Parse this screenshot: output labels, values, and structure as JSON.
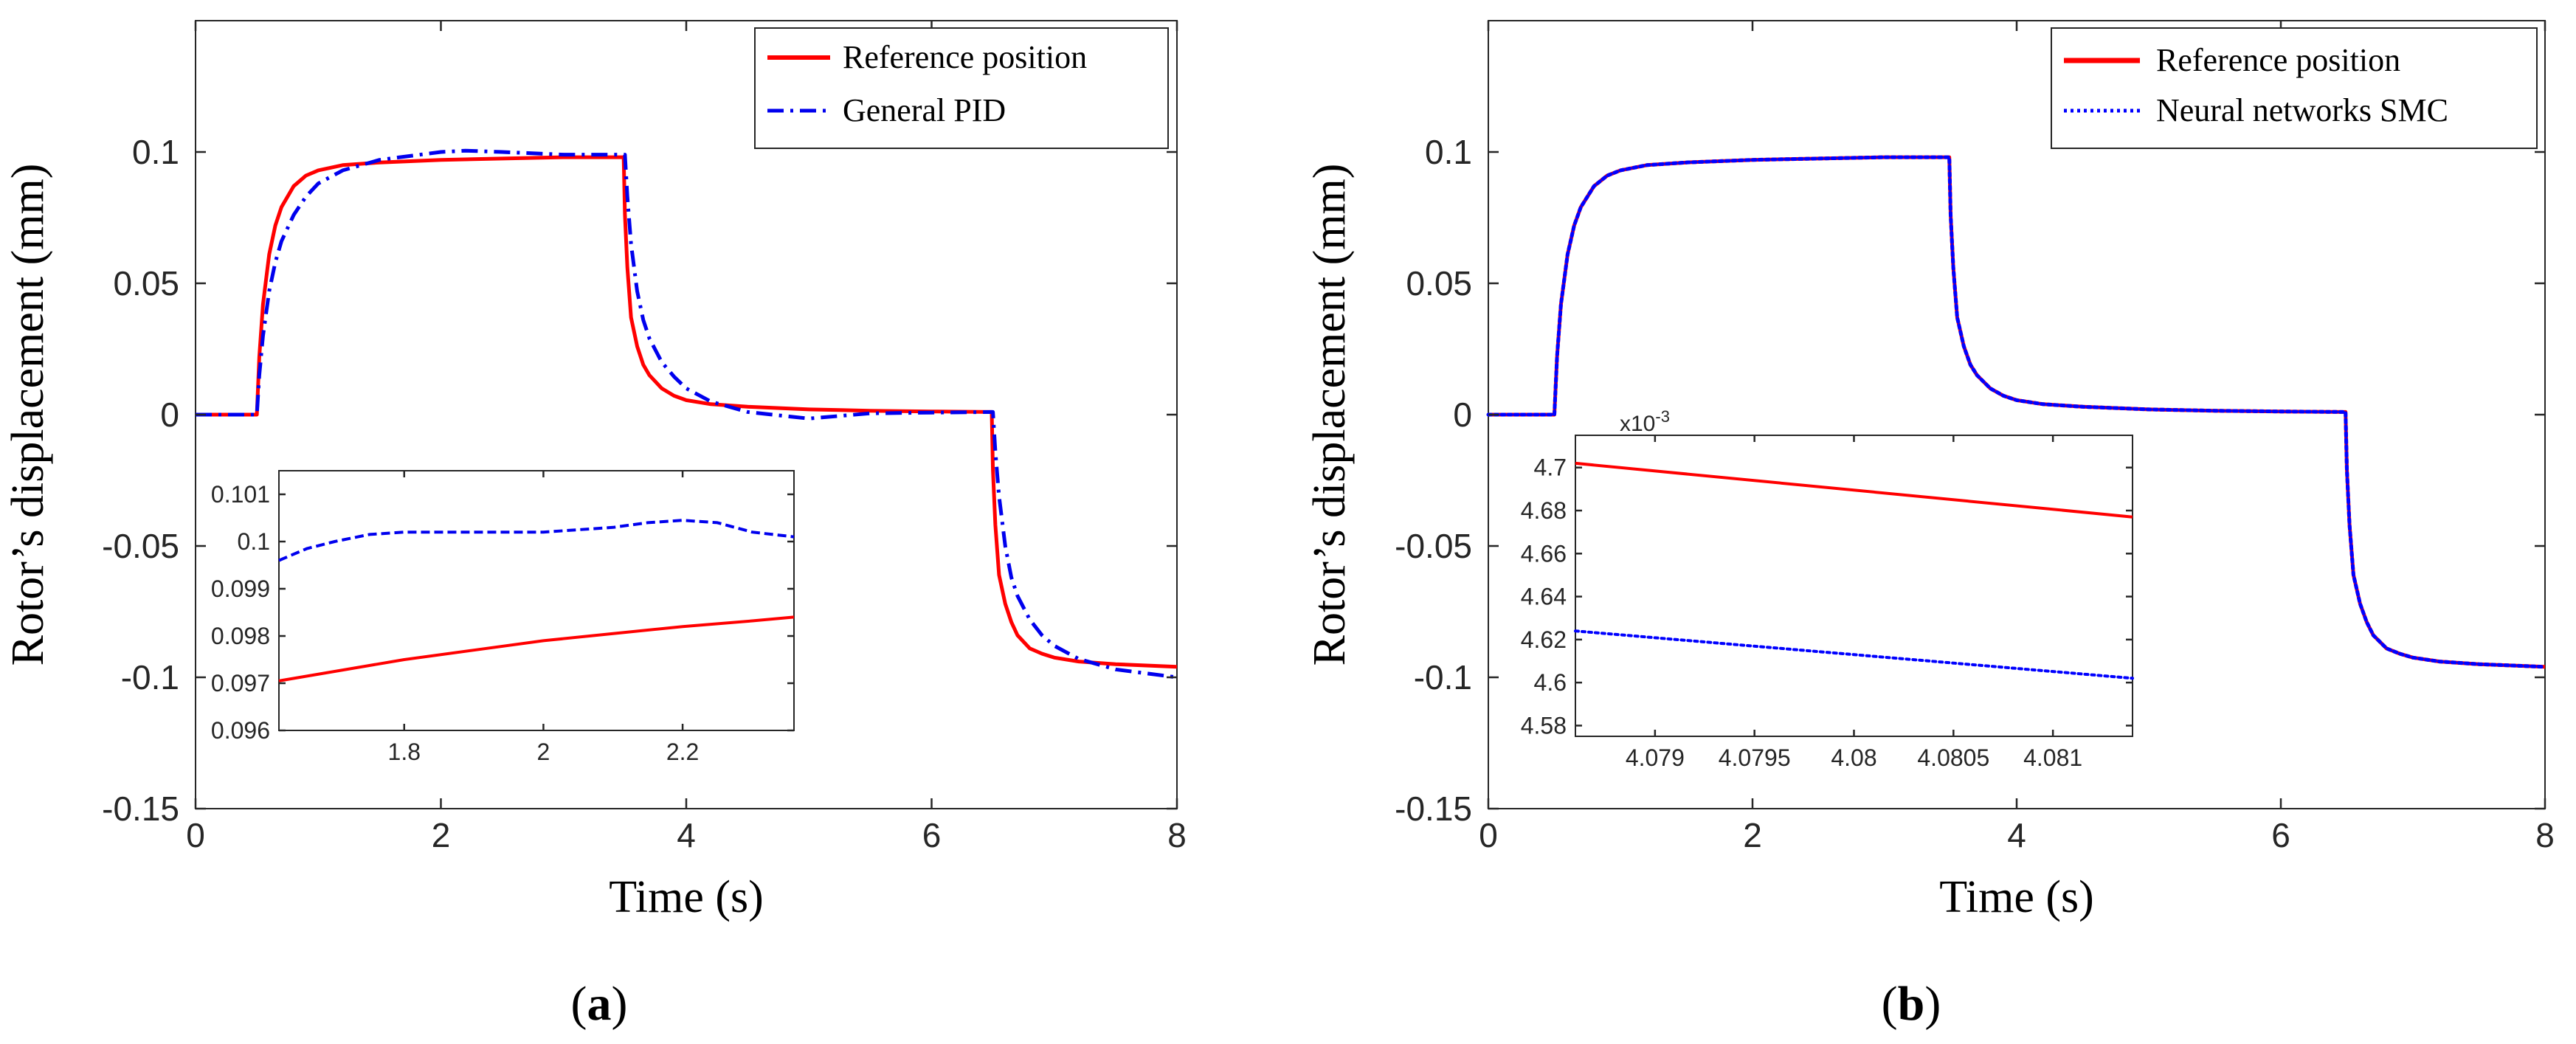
{
  "colors": {
    "reference": "#ff0000",
    "pid": "#0000ee",
    "smc": "#0000ff",
    "axis": "#262626"
  },
  "chart_data": [
    {
      "id": "a",
      "type": "line",
      "panel_label": {
        "open": "(",
        "letter": "a",
        "close": ")"
      },
      "xlabel": "Time (s)",
      "ylabel": "Rotor’s displacement (mm)",
      "xlim": [
        0,
        8
      ],
      "ylim": [
        -0.15,
        0.15
      ],
      "xticks": [
        0,
        2,
        4,
        6,
        8
      ],
      "xtick_labels": [
        "0",
        "2",
        "4",
        "6",
        "8"
      ],
      "yticks": [
        -0.15,
        -0.1,
        -0.05,
        0,
        0.05,
        0.1
      ],
      "ytick_labels": [
        "-0.15",
        "-0.1",
        "-0.05",
        "0",
        "0.05",
        "0.1"
      ],
      "legend": {
        "placement": "top-right",
        "entries": [
          "Reference position",
          "General PID"
        ]
      },
      "series": [
        {
          "name": "Reference position",
          "style": "solid",
          "x": [
            0,
            0.5,
            0.52,
            0.55,
            0.6,
            0.65,
            0.7,
            0.8,
            0.9,
            1.0,
            1.2,
            1.5,
            2.0,
            2.5,
            3.0,
            3.49,
            3.5,
            3.52,
            3.55,
            3.6,
            3.65,
            3.7,
            3.8,
            3.9,
            4.0,
            4.2,
            4.5,
            5.0,
            5.5,
            6.0,
            6.49,
            6.5,
            6.52,
            6.55,
            6.6,
            6.65,
            6.7,
            6.8,
            6.9,
            7.0,
            7.2,
            7.5,
            8.0
          ],
          "y": [
            0,
            0,
            0.022,
            0.042,
            0.061,
            0.072,
            0.079,
            0.087,
            0.091,
            0.093,
            0.095,
            0.096,
            0.097,
            0.0975,
            0.098,
            0.098,
            0.076,
            0.056,
            0.037,
            0.026,
            0.019,
            0.015,
            0.01,
            0.0072,
            0.0055,
            0.004,
            0.003,
            0.002,
            0.0015,
            0.0012,
            0.001,
            -0.021,
            -0.042,
            -0.061,
            -0.072,
            -0.079,
            -0.084,
            -0.089,
            -0.091,
            -0.0925,
            -0.094,
            -0.095,
            -0.096
          ]
        },
        {
          "name": "General PID",
          "style": "dashdot",
          "x": [
            0,
            0.5,
            0.52,
            0.55,
            0.6,
            0.65,
            0.7,
            0.8,
            0.9,
            1.0,
            1.2,
            1.5,
            2.0,
            2.2,
            2.5,
            3.0,
            3.5,
            3.52,
            3.55,
            3.6,
            3.65,
            3.7,
            3.8,
            3.9,
            4.0,
            4.2,
            4.5,
            5.0,
            5.5,
            6.0,
            6.5,
            6.52,
            6.55,
            6.6,
            6.65,
            6.7,
            6.8,
            6.9,
            7.0,
            7.2,
            7.5,
            8.0
          ],
          "y": [
            0,
            0,
            0.015,
            0.03,
            0.047,
            0.058,
            0.066,
            0.076,
            0.083,
            0.088,
            0.093,
            0.097,
            0.1,
            0.1005,
            0.1,
            0.099,
            0.099,
            0.083,
            0.065,
            0.047,
            0.036,
            0.029,
            0.02,
            0.0145,
            0.01,
            0.005,
            0.001,
            -0.0015,
            0.0005,
            0.0008,
            0.001,
            -0.014,
            -0.031,
            -0.05,
            -0.062,
            -0.069,
            -0.078,
            -0.084,
            -0.088,
            -0.093,
            -0.097,
            -0.1
          ]
        }
      ],
      "inset": {
        "xlim": [
          1.62,
          2.36
        ],
        "ylim": [
          0.096,
          0.1015
        ],
        "xticks": [
          1.8,
          2,
          2.2
        ],
        "xtick_labels": [
          "1.8",
          "2",
          "2.2"
        ],
        "yticks": [
          0.096,
          0.097,
          0.098,
          0.099,
          0.1,
          0.101
        ],
        "ytick_labels": [
          "0.096",
          "0.097",
          "0.098",
          "0.099",
          "0.1",
          "0.101"
        ],
        "series": [
          {
            "name": "Reference position",
            "style": "solid",
            "x": [
              1.62,
              1.7,
              1.8,
              1.9,
              2.0,
              2.1,
              2.2,
              2.3,
              2.36
            ],
            "y": [
              0.09705,
              0.09725,
              0.0975,
              0.0977,
              0.0979,
              0.09805,
              0.0982,
              0.09832,
              0.0984
            ]
          },
          {
            "name": "General PID",
            "style": "dashed",
            "x": [
              1.62,
              1.66,
              1.7,
              1.75,
              1.8,
              1.9,
              2.0,
              2.05,
              2.1,
              2.15,
              2.2,
              2.25,
              2.3,
              2.33,
              2.36
            ],
            "y": [
              0.0996,
              0.09985,
              0.1,
              0.10015,
              0.1002,
              0.1002,
              0.1002,
              0.10025,
              0.1003,
              0.1004,
              0.10045,
              0.1004,
              0.1002,
              0.10015,
              0.1001
            ]
          }
        ]
      }
    },
    {
      "id": "b",
      "type": "line",
      "panel_label": {
        "open": "(",
        "letter": "b",
        "close": ")"
      },
      "xlabel": "Time (s)",
      "ylabel": "Rotor’s displacement (mm)",
      "xlim": [
        0,
        8
      ],
      "ylim": [
        -0.15,
        0.15
      ],
      "xticks": [
        0,
        2,
        4,
        6,
        8
      ],
      "xtick_labels": [
        "0",
        "2",
        "4",
        "6",
        "8"
      ],
      "yticks": [
        -0.15,
        -0.1,
        -0.05,
        0,
        0.05,
        0.1
      ],
      "ytick_labels": [
        "-0.15",
        "-0.1",
        "-0.05",
        "0",
        "0.05",
        "0.1"
      ],
      "legend": {
        "placement": "top-right",
        "entries": [
          "Reference position",
          "Neural networks SMC"
        ]
      },
      "series": [
        {
          "name": "Reference position",
          "style": "solid",
          "x": [
            0,
            0.5,
            0.52,
            0.55,
            0.6,
            0.65,
            0.7,
            0.8,
            0.9,
            1.0,
            1.2,
            1.5,
            2.0,
            2.5,
            3.0,
            3.49,
            3.5,
            3.52,
            3.55,
            3.6,
            3.65,
            3.7,
            3.8,
            3.9,
            4.0,
            4.2,
            4.5,
            5.0,
            5.5,
            6.0,
            6.49,
            6.5,
            6.52,
            6.55,
            6.6,
            6.65,
            6.7,
            6.8,
            6.9,
            7.0,
            7.2,
            7.5,
            8.0
          ],
          "y": [
            0,
            0,
            0.022,
            0.042,
            0.061,
            0.072,
            0.079,
            0.087,
            0.091,
            0.093,
            0.095,
            0.096,
            0.097,
            0.0975,
            0.098,
            0.098,
            0.076,
            0.056,
            0.037,
            0.026,
            0.019,
            0.015,
            0.01,
            0.0072,
            0.0055,
            0.004,
            0.003,
            0.002,
            0.0015,
            0.0012,
            0.001,
            -0.021,
            -0.042,
            -0.061,
            -0.072,
            -0.079,
            -0.084,
            -0.089,
            -0.091,
            -0.0925,
            -0.094,
            -0.095,
            -0.096
          ]
        },
        {
          "name": "Neural networks SMC",
          "style": "dotted",
          "x": [
            0,
            0.5,
            0.52,
            0.55,
            0.6,
            0.65,
            0.7,
            0.8,
            0.9,
            1.0,
            1.2,
            1.5,
            2.0,
            2.5,
            3.0,
            3.49,
            3.5,
            3.52,
            3.55,
            3.6,
            3.65,
            3.7,
            3.8,
            3.9,
            4.0,
            4.2,
            4.5,
            5.0,
            5.5,
            6.0,
            6.49,
            6.5,
            6.52,
            6.55,
            6.6,
            6.65,
            6.7,
            6.8,
            6.9,
            7.0,
            7.2,
            7.5,
            8.0
          ],
          "y": [
            0,
            0,
            0.022,
            0.042,
            0.061,
            0.072,
            0.079,
            0.087,
            0.091,
            0.093,
            0.095,
            0.096,
            0.097,
            0.0975,
            0.098,
            0.098,
            0.076,
            0.056,
            0.037,
            0.026,
            0.019,
            0.015,
            0.01,
            0.0072,
            0.0055,
            0.004,
            0.003,
            0.002,
            0.0015,
            0.0012,
            0.001,
            -0.021,
            -0.042,
            -0.061,
            -0.072,
            -0.079,
            -0.084,
            -0.089,
            -0.091,
            -0.0925,
            -0.094,
            -0.095,
            -0.096
          ]
        }
      ],
      "inset": {
        "exponent_label": "x10",
        "exponent_power": "-3",
        "xlim": [
          4.0786,
          4.0814
        ],
        "ylim": [
          4.575,
          4.715
        ],
        "xticks": [
          4.079,
          4.0795,
          4.08,
          4.0805,
          4.081
        ],
        "xtick_labels": [
          "4.079",
          "4.0795",
          "4.08",
          "4.0805",
          "4.081"
        ],
        "yticks": [
          4.58,
          4.6,
          4.62,
          4.64,
          4.66,
          4.68,
          4.7
        ],
        "ytick_labels": [
          "4.58",
          "4.6",
          "4.62",
          "4.64",
          "4.66",
          "4.68",
          "4.7"
        ],
        "series": [
          {
            "name": "Reference position",
            "style": "solid",
            "x": [
              4.0786,
              4.0814
            ],
            "y": [
              4.702,
              4.677
            ]
          },
          {
            "name": "Neural networks SMC",
            "style": "dotted",
            "x": [
              4.0786,
              4.0814
            ],
            "y": [
              4.624,
              4.602
            ]
          }
        ]
      }
    }
  ]
}
